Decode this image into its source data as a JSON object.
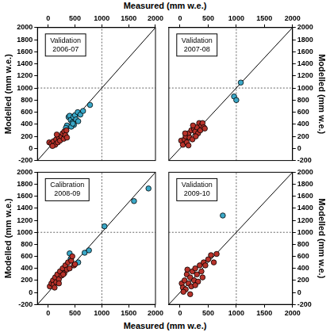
{
  "chart_data": [
    {
      "type": "scatter",
      "annotation": [
        "Validation",
        "2006-07"
      ],
      "xlabel": "Measured (mm w.e.)",
      "ylabel": "Modelled (mm w.e.)",
      "xlim": [
        -200,
        2000
      ],
      "ylim": [
        -200,
        2000
      ],
      "xticks": [
        0,
        500,
        1000,
        1500,
        2000
      ],
      "yticks": [
        -200,
        0,
        200,
        400,
        600,
        800,
        1000,
        1200,
        1400,
        1600,
        1800,
        2000
      ],
      "grid": false,
      "series": [
        {
          "type": "line",
          "line_style": "solid",
          "color": "#000000",
          "x": [
            -200,
            2000
          ],
          "values": [
            -200,
            2000
          ]
        },
        {
          "type": "line",
          "line_style": "dotted",
          "color": "#666666",
          "x": [
            1000,
            1000
          ],
          "values": [
            -200,
            2000
          ]
        },
        {
          "type": "line",
          "line_style": "dotted",
          "color": "#666666",
          "x": [
            -200,
            2000
          ],
          "values": [
            1000,
            1000
          ]
        },
        {
          "type": "scatter",
          "marker": "circle",
          "color": "#b8322a",
          "x": [
            20,
            60,
            100,
            130,
            150,
            180,
            200,
            220,
            250,
            270,
            290,
            300,
            320,
            340,
            350,
            80,
            160
          ],
          "values": [
            100,
            80,
            120,
            60,
            150,
            100,
            180,
            130,
            200,
            250,
            160,
            280,
            220,
            300,
            180,
            40,
            230
          ]
        },
        {
          "type": "scatter",
          "marker": "circle",
          "color": "#3aa8c8",
          "x": [
            350,
            380,
            400,
            420,
            450,
            470,
            480,
            500,
            520,
            550,
            560,
            600,
            650,
            780,
            430,
            330,
            460
          ],
          "values": [
            380,
            520,
            540,
            470,
            430,
            520,
            390,
            550,
            480,
            600,
            450,
            560,
            620,
            720,
            360,
            340,
            410
          ]
        }
      ]
    },
    {
      "type": "scatter",
      "annotation": [
        "Validation",
        "2007-08"
      ],
      "ylabel": "Modelled (mm w.e.)",
      "xlim": [
        -200,
        2000
      ],
      "ylim": [
        -200,
        2000
      ],
      "xticks": [
        0,
        500,
        1000,
        1500,
        2000
      ],
      "yticks": [
        -200,
        0,
        200,
        400,
        600,
        800,
        1000,
        1200,
        1400,
        1600,
        1800,
        2000
      ],
      "grid": false,
      "series": [
        {
          "type": "line",
          "line_style": "solid",
          "color": "#000000",
          "x": [
            -200,
            2000
          ],
          "values": [
            -200,
            2000
          ]
        },
        {
          "type": "line",
          "line_style": "dotted",
          "color": "#666666",
          "x": [
            1000,
            1000
          ],
          "values": [
            -200,
            2000
          ]
        },
        {
          "type": "line",
          "line_style": "dotted",
          "color": "#666666",
          "x": [
            -200,
            2000
          ],
          "values": [
            1000,
            1000
          ]
        },
        {
          "type": "scatter",
          "marker": "circle",
          "color": "#b8322a",
          "x": [
            20,
            50,
            80,
            100,
            120,
            150,
            170,
            200,
            220,
            250,
            270,
            300,
            320,
            340,
            360,
            380,
            400,
            420,
            440,
            150,
            90,
            280,
            230
          ],
          "values": [
            130,
            60,
            150,
            200,
            100,
            250,
            180,
            300,
            150,
            320,
            280,
            350,
            250,
            420,
            300,
            380,
            420,
            350,
            330,
            50,
            250,
            200,
            380
          ]
        },
        {
          "type": "scatter",
          "marker": "circle",
          "color": "#3aa8c8",
          "x": [
            960,
            1000,
            1080
          ],
          "values": [
            860,
            800,
            1090
          ]
        }
      ]
    },
    {
      "type": "scatter",
      "annotation": [
        "Calibration",
        "2008-09"
      ],
      "xlabel": "Measured (mm w.e.)",
      "ylabel": "Modelled (mm w.e.)",
      "xlim": [
        -200,
        2000
      ],
      "ylim": [
        -200,
        2000
      ],
      "xticks": [
        0,
        500,
        1000,
        1500,
        2000
      ],
      "yticks": [
        -200,
        0,
        200,
        400,
        600,
        800,
        1000,
        1200,
        1400,
        1600,
        1800,
        2000
      ],
      "grid": false,
      "series": [
        {
          "type": "line",
          "line_style": "solid",
          "color": "#000000",
          "x": [
            -200,
            2000
          ],
          "values": [
            -200,
            2000
          ]
        },
        {
          "type": "line",
          "line_style": "dotted",
          "color": "#666666",
          "x": [
            1000,
            1000
          ],
          "values": [
            -200,
            2000
          ]
        },
        {
          "type": "line",
          "line_style": "dotted",
          "color": "#666666",
          "x": [
            -200,
            2000
          ],
          "values": [
            1000,
            1000
          ]
        },
        {
          "type": "scatter",
          "marker": "circle",
          "color": "#b8322a",
          "x": [
            30,
            60,
            90,
            100,
            130,
            150,
            170,
            200,
            220,
            250,
            270,
            300,
            320,
            350,
            370,
            400,
            430,
            450,
            480,
            500,
            200,
            120,
            280
          ],
          "values": [
            100,
            150,
            200,
            130,
            250,
            170,
            300,
            220,
            350,
            280,
            400,
            320,
            450,
            380,
            500,
            400,
            530,
            600,
            450,
            470,
            150,
            80,
            300
          ]
        },
        {
          "type": "scatter",
          "marker": "circle",
          "color": "#3aa8c8",
          "x": [
            400,
            420,
            560,
            680,
            760,
            1050,
            1600,
            1870
          ],
          "values": [
            650,
            560,
            500,
            660,
            700,
            1100,
            1520,
            1730
          ]
        }
      ]
    },
    {
      "type": "scatter",
      "annotation": [
        "Validation",
        "2009-10"
      ],
      "ylabel": "Modelled (mm w.e.)",
      "xlim": [
        -200,
        2000
      ],
      "ylim": [
        -200,
        2000
      ],
      "xticks": [
        0,
        500,
        1000,
        1500,
        2000
      ],
      "yticks": [
        -200,
        0,
        200,
        400,
        600,
        800,
        1000,
        1200,
        1400,
        1600,
        1800,
        2000
      ],
      "grid": false,
      "series": [
        {
          "type": "line",
          "line_style": "solid",
          "color": "#000000",
          "x": [
            -200,
            2000
          ],
          "values": [
            -200,
            2000
          ]
        },
        {
          "type": "line",
          "line_style": "dotted",
          "color": "#666666",
          "x": [
            1000,
            1000
          ],
          "values": [
            -200,
            2000
          ]
        },
        {
          "type": "line",
          "line_style": "dotted",
          "color": "#666666",
          "x": [
            -200,
            2000
          ],
          "values": [
            1000,
            1000
          ]
        },
        {
          "type": "scatter",
          "marker": "circle",
          "color": "#b8322a",
          "x": [
            30,
            50,
            80,
            100,
            120,
            150,
            180,
            200,
            220,
            250,
            270,
            300,
            320,
            350,
            380,
            400,
            420,
            450,
            500,
            550,
            600,
            650,
            130,
            270,
            60,
            180
          ],
          "values": [
            150,
            80,
            200,
            50,
            300,
            150,
            250,
            100,
            350,
            200,
            400,
            300,
            180,
            450,
            350,
            250,
            500,
            450,
            550,
            620,
            500,
            640,
            380,
            120,
            10,
            -30
          ]
        },
        {
          "type": "scatter",
          "marker": "circle",
          "color": "#3aa8c8",
          "x": [
            760
          ],
          "values": [
            1280
          ]
        }
      ]
    }
  ]
}
